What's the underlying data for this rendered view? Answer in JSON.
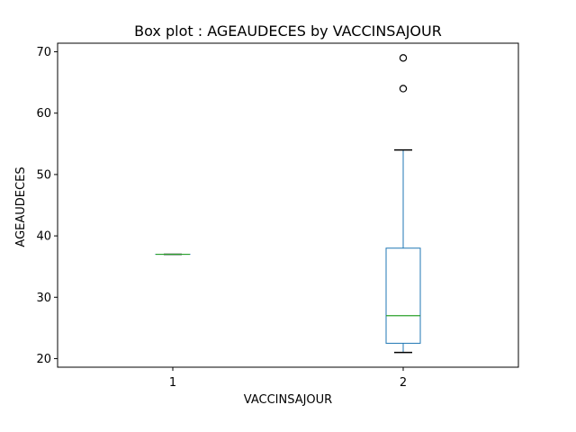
{
  "chart_data": {
    "type": "box",
    "title": "Box plot : AGEAUDECES by VACCINSAJOUR",
    "xlabel": "VACCINSAJOUR",
    "ylabel": "AGEAUDECES",
    "categories": [
      "1",
      "2"
    ],
    "ylim": [
      18.6,
      71.4
    ],
    "yticks": [
      20,
      30,
      40,
      50,
      60,
      70
    ],
    "grid": false,
    "boxes": [
      {
        "category": "1",
        "whisker_low": 37,
        "q1": 37,
        "median": 37,
        "q3": 37,
        "whisker_high": 37,
        "outliers": []
      },
      {
        "category": "2",
        "whisker_low": 21,
        "q1": 22.5,
        "median": 27,
        "q3": 38,
        "whisker_high": 54,
        "outliers": [
          64,
          69
        ]
      }
    ],
    "colors": {
      "box": "#1f77b4",
      "median": "#2ca02c",
      "whisker": "#1f77b4",
      "cap": "#000000",
      "outlier": "#000000"
    }
  }
}
